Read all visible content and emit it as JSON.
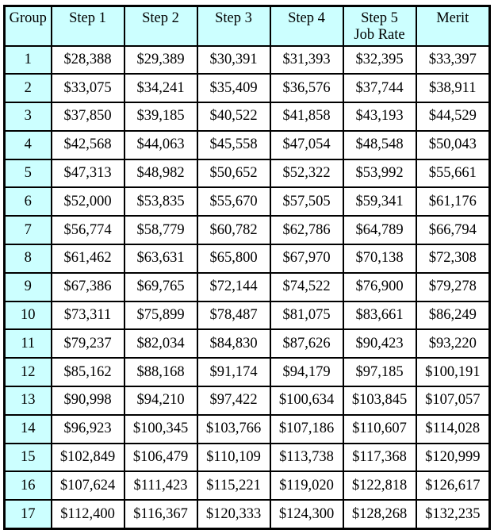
{
  "table": {
    "headers": [
      "Group",
      "Step 1",
      "Step 2",
      "Step 3",
      "Step 4",
      "Step 5\nJob Rate",
      "Merit"
    ],
    "rows": [
      [
        "1",
        "$28,388",
        "$29,389",
        "$30,391",
        "$31,393",
        "$32,395",
        "$33,397"
      ],
      [
        "2",
        "$33,075",
        "$34,241",
        "$35,409",
        "$36,576",
        "$37,744",
        "$38,911"
      ],
      [
        "3",
        "$37,850",
        "$39,185",
        "$40,522",
        "$41,858",
        "$43,193",
        "$44,529"
      ],
      [
        "4",
        "$42,568",
        "$44,063",
        "$45,558",
        "$47,054",
        "$48,548",
        "$50,043"
      ],
      [
        "5",
        "$47,313",
        "$48,982",
        "$50,652",
        "$52,322",
        "$53,992",
        "$55,661"
      ],
      [
        "6",
        "$52,000",
        "$53,835",
        "$55,670",
        "$57,505",
        "$59,341",
        "$61,176"
      ],
      [
        "7",
        "$56,774",
        "$58,779",
        "$60,782",
        "$62,786",
        "$64,789",
        "$66,794"
      ],
      [
        "8",
        "$61,462",
        "$63,631",
        "$65,800",
        "$67,970",
        "$70,138",
        "$72,308"
      ],
      [
        "9",
        "$67,386",
        "$69,765",
        "$72,144",
        "$74,522",
        "$76,900",
        "$79,278"
      ],
      [
        "10",
        "$73,311",
        "$75,899",
        "$78,487",
        "$81,075",
        "$83,661",
        "$86,249"
      ],
      [
        "11",
        "$79,237",
        "$82,034",
        "$84,830",
        "$87,626",
        "$90,423",
        "$93,220"
      ],
      [
        "12",
        "$85,162",
        "$88,168",
        "$91,174",
        "$94,179",
        "$97,185",
        "$100,191"
      ],
      [
        "13",
        "$90,998",
        "$94,210",
        "$97,422",
        "$100,634",
        "$103,845",
        "$107,057"
      ],
      [
        "14",
        "$96,923",
        "$100,345",
        "$103,766",
        "$107,186",
        "$110,607",
        "$114,028"
      ],
      [
        "15",
        "$102,849",
        "$106,479",
        "$110,109",
        "$113,738",
        "$117,368",
        "$120,999"
      ],
      [
        "16",
        "$107,624",
        "$111,423",
        "$115,221",
        "$119,020",
        "$122,818",
        "$126,617"
      ],
      [
        "17",
        "$112,400",
        "$116,367",
        "$120,333",
        "$124,300",
        "$128,268",
        "$132,235"
      ]
    ]
  },
  "colors": {
    "header_bg": "#ccffff",
    "group_bg": "#ccffff",
    "cell_bg": "#ffffff",
    "border": "#000000"
  }
}
